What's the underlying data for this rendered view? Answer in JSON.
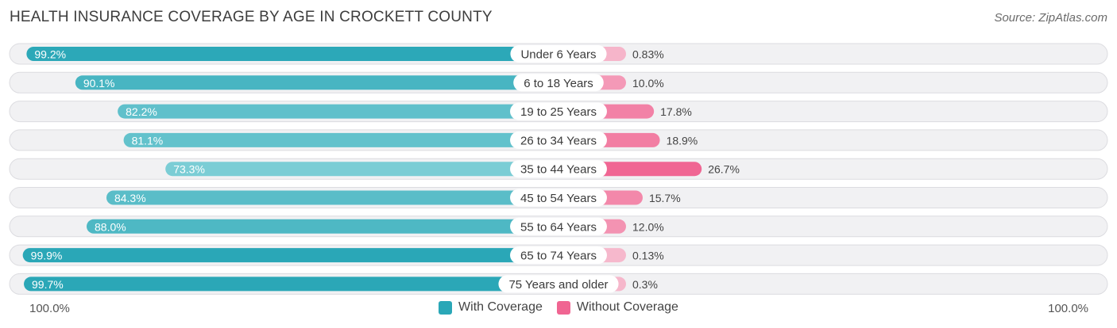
{
  "title": "HEALTH INSURANCE COVERAGE BY AGE IN CROCKETT COUNTY",
  "source": "Source: ZipAtlas.com",
  "axis": {
    "left_label": "100.0%",
    "right_label": "100.0%"
  },
  "legend": {
    "with_label": "With Coverage",
    "without_label": "Without Coverage",
    "with_color": "#2aa7b7",
    "without_color": "#f06592"
  },
  "chart_data": {
    "type": "bar",
    "orientation": "horizontal-diverging",
    "title": "HEALTH INSURANCE COVERAGE BY AGE IN CROCKETT COUNTY",
    "xlim": [
      -100,
      100
    ],
    "categories": [
      "Under 6 Years",
      "6 to 18 Years",
      "19 to 25 Years",
      "26 to 34 Years",
      "35 to 44 Years",
      "45 to 54 Years",
      "55 to 64 Years",
      "65 to 74 Years",
      "75 Years and older"
    ],
    "series": [
      {
        "name": "With Coverage",
        "values": [
          99.2,
          90.1,
          82.2,
          81.1,
          73.3,
          84.3,
          88.0,
          99.9,
          99.7
        ],
        "labels": [
          "99.2%",
          "90.1%",
          "82.2%",
          "81.1%",
          "73.3%",
          "84.3%",
          "88.0%",
          "99.9%",
          "99.7%"
        ]
      },
      {
        "name": "Without Coverage",
        "values": [
          0.83,
          10.0,
          17.8,
          18.9,
          26.7,
          15.7,
          12.0,
          0.13,
          0.3
        ],
        "labels": [
          "0.83%",
          "10.0%",
          "17.8%",
          "18.9%",
          "26.7%",
          "15.7%",
          "12.0%",
          "0.13%",
          "0.3%"
        ]
      }
    ]
  }
}
